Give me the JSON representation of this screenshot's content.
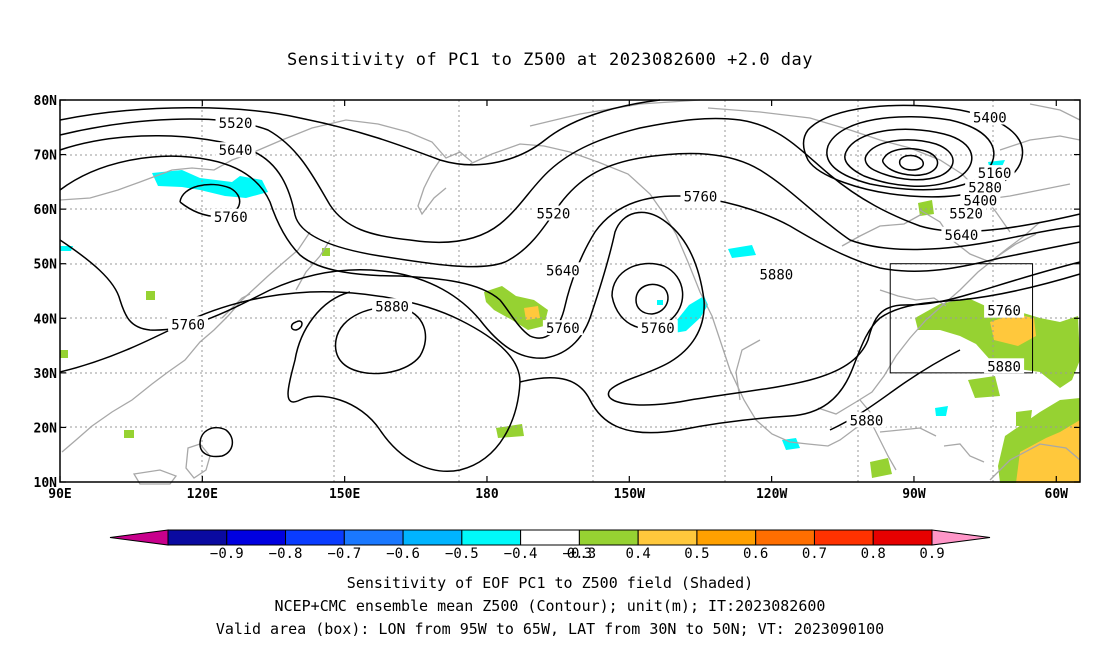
{
  "title": "Sensitivity of PC1 to Z500 at 2023082600 +2.0 day",
  "map": {
    "lon_range": [
      90,
      305
    ],
    "lat_range": [
      10,
      80
    ],
    "lat_ticks": [
      {
        "value": 80,
        "label": "80N"
      },
      {
        "value": 70,
        "label": "70N"
      },
      {
        "value": 60,
        "label": "60N"
      },
      {
        "value": 50,
        "label": "50N"
      },
      {
        "value": 40,
        "label": "40N"
      },
      {
        "value": 30,
        "label": "30N"
      },
      {
        "value": 20,
        "label": "20N"
      },
      {
        "value": 10,
        "label": "10N"
      }
    ],
    "lon_ticks": [
      {
        "value": 90,
        "label": "90E"
      },
      {
        "value": 120,
        "label": "120E"
      },
      {
        "value": 150,
        "label": "150E"
      },
      {
        "value": 180,
        "label": "180"
      },
      {
        "value": 210,
        "label": "150W"
      },
      {
        "value": 240,
        "label": "120W"
      },
      {
        "value": 270,
        "label": "90W"
      },
      {
        "value": 300,
        "label": "60W"
      }
    ],
    "valid_box": {
      "lon": [
        265,
        295
      ],
      "lat": [
        30,
        50
      ]
    },
    "contour_labels": [
      {
        "text": "5520",
        "lon": 127,
        "lat": 75.8
      },
      {
        "text": "5640",
        "lon": 127,
        "lat": 70.8
      },
      {
        "text": "5760",
        "lon": 126,
        "lat": 58.6
      },
      {
        "text": "5520",
        "lon": 194,
        "lat": 59.2
      },
      {
        "text": "5640",
        "lon": 196,
        "lat": 48.8
      },
      {
        "text": "5760",
        "lon": 225,
        "lat": 62.3
      },
      {
        "text": "5880",
        "lon": 241,
        "lat": 48.0
      },
      {
        "text": "5880",
        "lon": 160,
        "lat": 42.2
      },
      {
        "text": "5760",
        "lon": 117,
        "lat": 38.9
      },
      {
        "text": "5760",
        "lon": 196,
        "lat": 38.2
      },
      {
        "text": "5760",
        "lon": 216,
        "lat": 38.2
      },
      {
        "text": "5400",
        "lon": 286,
        "lat": 76.8
      },
      {
        "text": "5160",
        "lon": 287,
        "lat": 66.6
      },
      {
        "text": "5280",
        "lon": 285,
        "lat": 64.0
      },
      {
        "text": "5400",
        "lon": 284,
        "lat": 61.6
      },
      {
        "text": "5520",
        "lon": 281,
        "lat": 59.2
      },
      {
        "text": "5640",
        "lon": 280,
        "lat": 55.3
      },
      {
        "text": "5760",
        "lon": 289,
        "lat": 41.4
      },
      {
        "text": "5880",
        "lon": 289,
        "lat": 31.2
      },
      {
        "text": "5880",
        "lon": 260,
        "lat": 21.3
      }
    ]
  },
  "chart_data": {
    "type": "heatmap",
    "title": "Sensitivity of PC1 to Z500 at 2023082600 +2.0 day",
    "x_range": [
      90,
      305
    ],
    "y_range": [
      10,
      80
    ],
    "colorbar": {
      "labels": [
        "−0.9",
        "−0.8",
        "−0.7",
        "−0.6",
        "−0.5",
        "−0.4",
        "−0.3",
        "0.3",
        "0.4",
        "0.5",
        "0.6",
        "0.7",
        "0.8",
        "0.9"
      ],
      "colors": [
        "#0a0aa0",
        "#0000e0",
        "#0a3cff",
        "#1a78ff",
        "#00b4ff",
        "#00fafa",
        "#ffffff",
        "#96d232",
        "#ffc83c",
        "#ffa000",
        "#ff6e00",
        "#ff3200",
        "#e60000"
      ],
      "under_color": "#c8008c",
      "over_color": "#ff96c8"
    }
  },
  "captions": [
    "Sensitivity of EOF PC1 to Z500 field (Shaded)",
    "NCEP+CMC ensemble mean Z500 (Contour); unit(m); IT:2023082600",
    "Valid area (box): LON from 95W to 65W, LAT from 30N to 50N; VT: 2023090100"
  ],
  "colors": {
    "coast": "#a8a8a8",
    "grid": "#9a9a9a",
    "contour": "#000000",
    "positive": "#96d232",
    "high_positive": "#ffc83c",
    "negative": "#00fafa"
  }
}
